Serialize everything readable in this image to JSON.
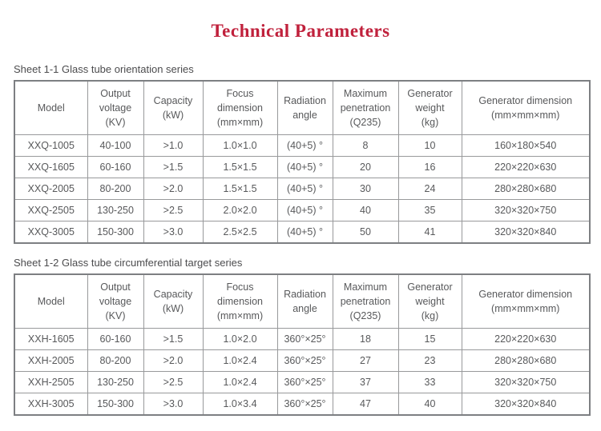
{
  "page": {
    "title": "Technical Parameters"
  },
  "colors": {
    "title_red": "#c0213c",
    "table_text": "#58595b",
    "border_inner": "#98999b",
    "border_outer": "#7d7f82"
  },
  "sections": [
    {
      "label": "Sheet 1-1 Glass tube orientation series",
      "headers": [
        "Model",
        "Output\nvoltage\n(KV)",
        "Capacity\n(kW)",
        "Focus\ndimension\n(mm×mm)",
        "Radiation\nangle",
        "Maximum\npenetration\n(Q235)",
        "Generator\nweight\n(kg)",
        "Generator dimension\n(mm×mm×mm)"
      ],
      "rows": [
        [
          "XXQ-1005",
          "40-100",
          ">1.0",
          "1.0×1.0",
          "(40+5) °",
          "8",
          "10",
          "160×180×540"
        ],
        [
          "XXQ-1605",
          "60-160",
          ">1.5",
          "1.5×1.5",
          "(40+5) °",
          "20",
          "16",
          "220×220×630"
        ],
        [
          "XXQ-2005",
          "80-200",
          ">2.0",
          "1.5×1.5",
          "(40+5) °",
          "30",
          "24",
          "280×280×680"
        ],
        [
          "XXQ-2505",
          "130-250",
          ">2.5",
          "2.0×2.0",
          "(40+5) °",
          "40",
          "35",
          "320×320×750"
        ],
        [
          "XXQ-3005",
          "150-300",
          ">3.0",
          "2.5×2.5",
          "(40+5) °",
          "50",
          "41",
          "320×320×840"
        ]
      ]
    },
    {
      "label": "Sheet 1-2 Glass tube circumferential target series",
      "headers": [
        "Model",
        "Output\nvoltage\n(KV)",
        "Capacity\n(kW)",
        "Focus\ndimension\n(mm×mm)",
        "Radiation\nangle",
        "Maximum\npenetration\n(Q235)",
        "Generator\nweight\n(kg)",
        "Generator dimension\n(mm×mm×mm)"
      ],
      "rows": [
        [
          "XXH-1605",
          "60-160",
          ">1.5",
          "1.0×2.0",
          "360°×25°",
          "18",
          "15",
          "220×220×630"
        ],
        [
          "XXH-2005",
          "80-200",
          ">2.0",
          "1.0×2.4",
          "360°×25°",
          "27",
          "23",
          "280×280×680"
        ],
        [
          "XXH-2505",
          "130-250",
          ">2.5",
          "1.0×2.4",
          "360°×25°",
          "37",
          "33",
          "320×320×750"
        ],
        [
          "XXH-3005",
          "150-300",
          ">3.0",
          "1.0×3.4",
          "360°×25°",
          "47",
          "40",
          "320×320×840"
        ]
      ]
    }
  ]
}
